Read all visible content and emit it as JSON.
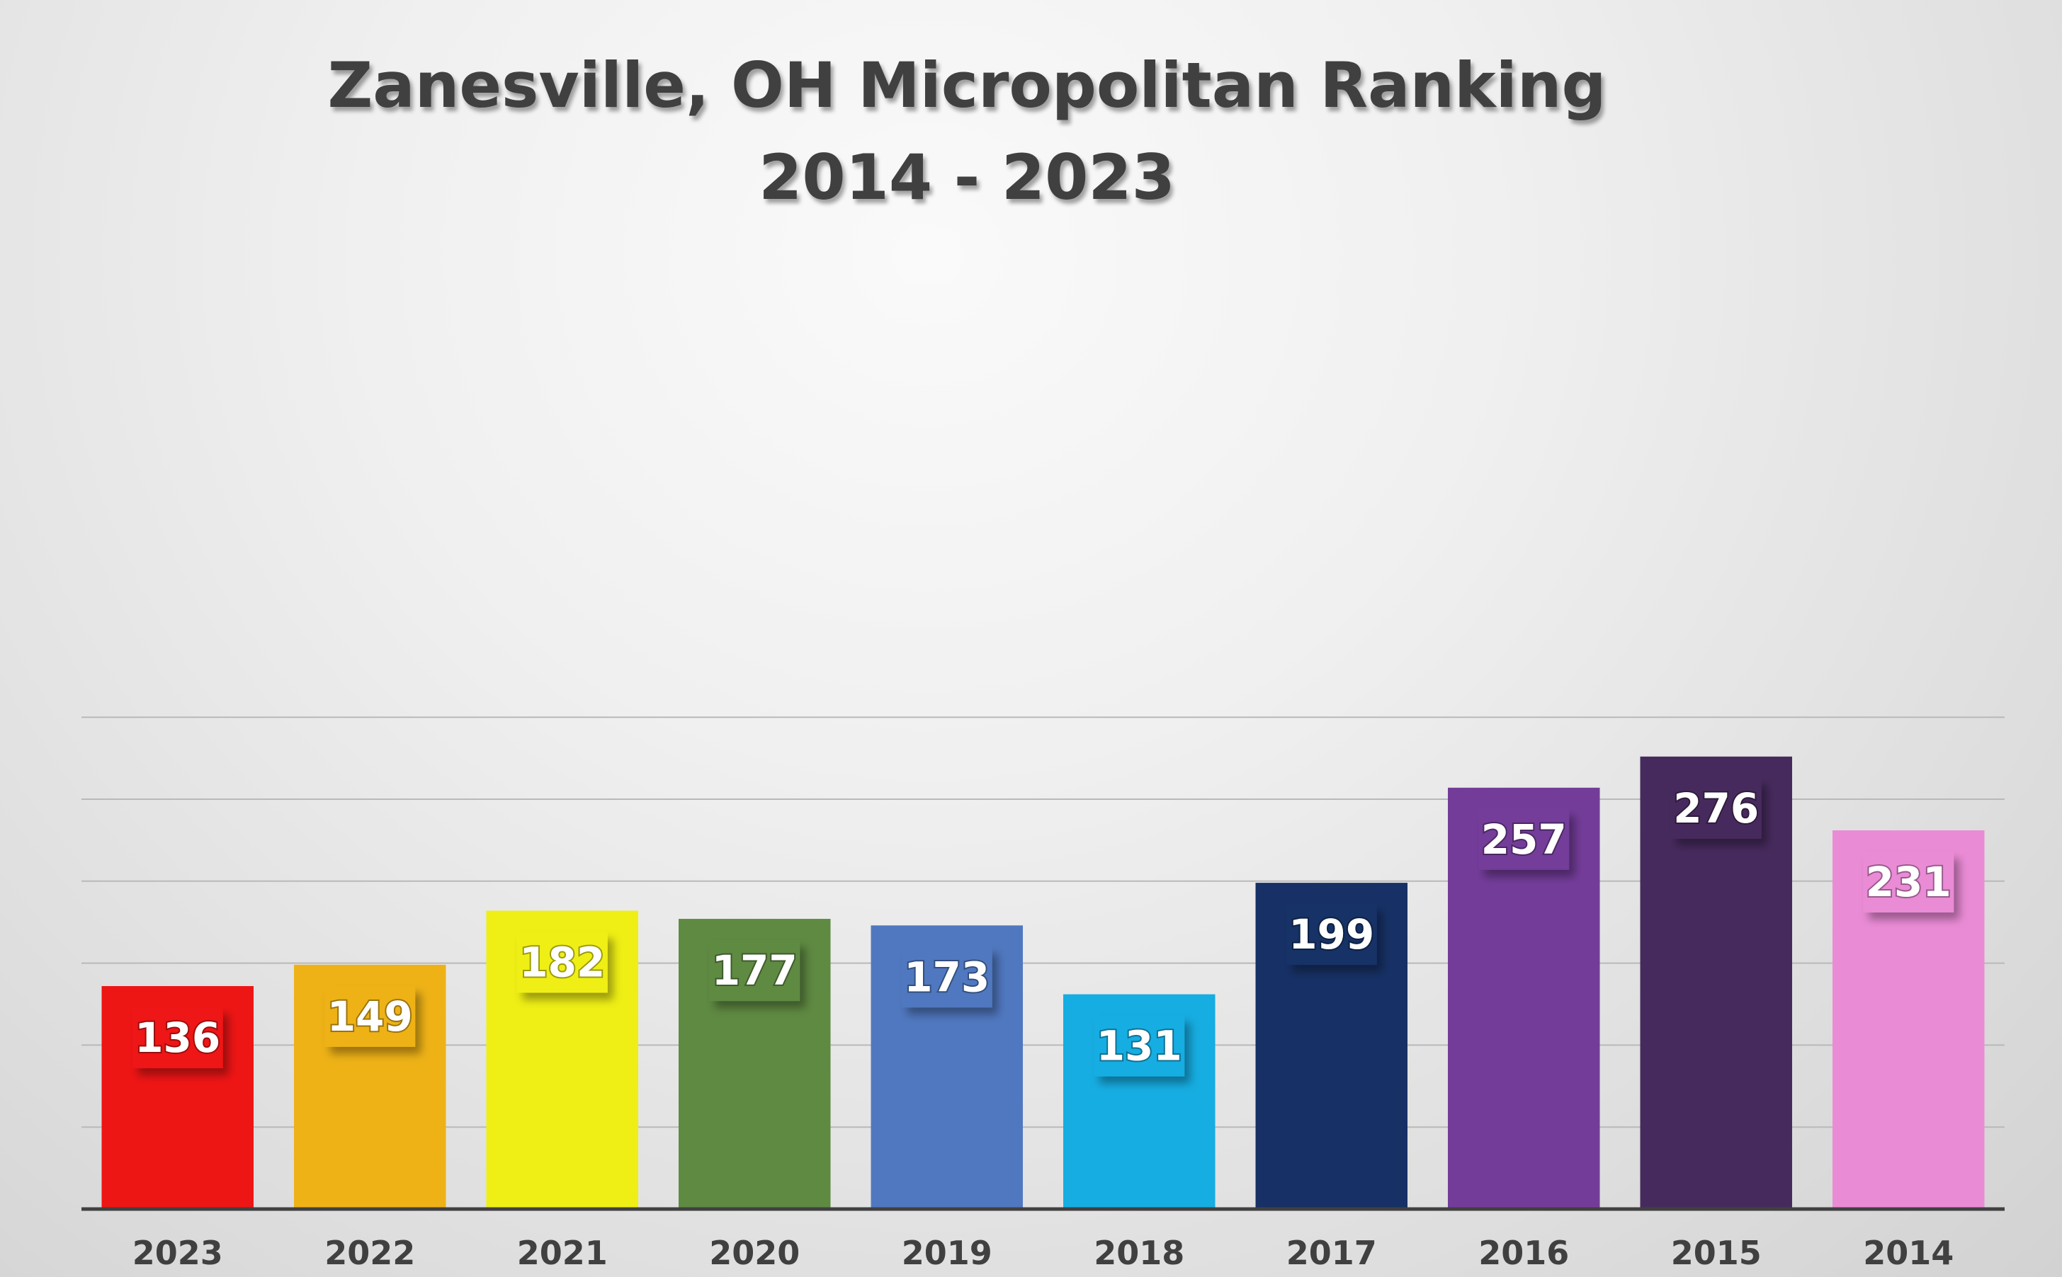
{
  "chart_data": {
    "type": "bar",
    "title_line1": "Zanesville, OH Micropolitan Ranking",
    "title_line2": "2014 - 2023",
    "categories": [
      "2023",
      "2022",
      "2021",
      "2020",
      "2019",
      "2018",
      "2017",
      "2016",
      "2015",
      "2014"
    ],
    "values": [
      136,
      149,
      182,
      177,
      173,
      131,
      199,
      257,
      276,
      231
    ],
    "colors": [
      "#ee1515",
      "#eeb217",
      "#efef15",
      "#5f8a42",
      "#5078c0",
      "#16ade2",
      "#173166",
      "#733c99",
      "#462a5d",
      "#ea8bd6"
    ],
    "ylim": [
      0,
      300
    ],
    "gridlines": true,
    "data_labels": true
  }
}
